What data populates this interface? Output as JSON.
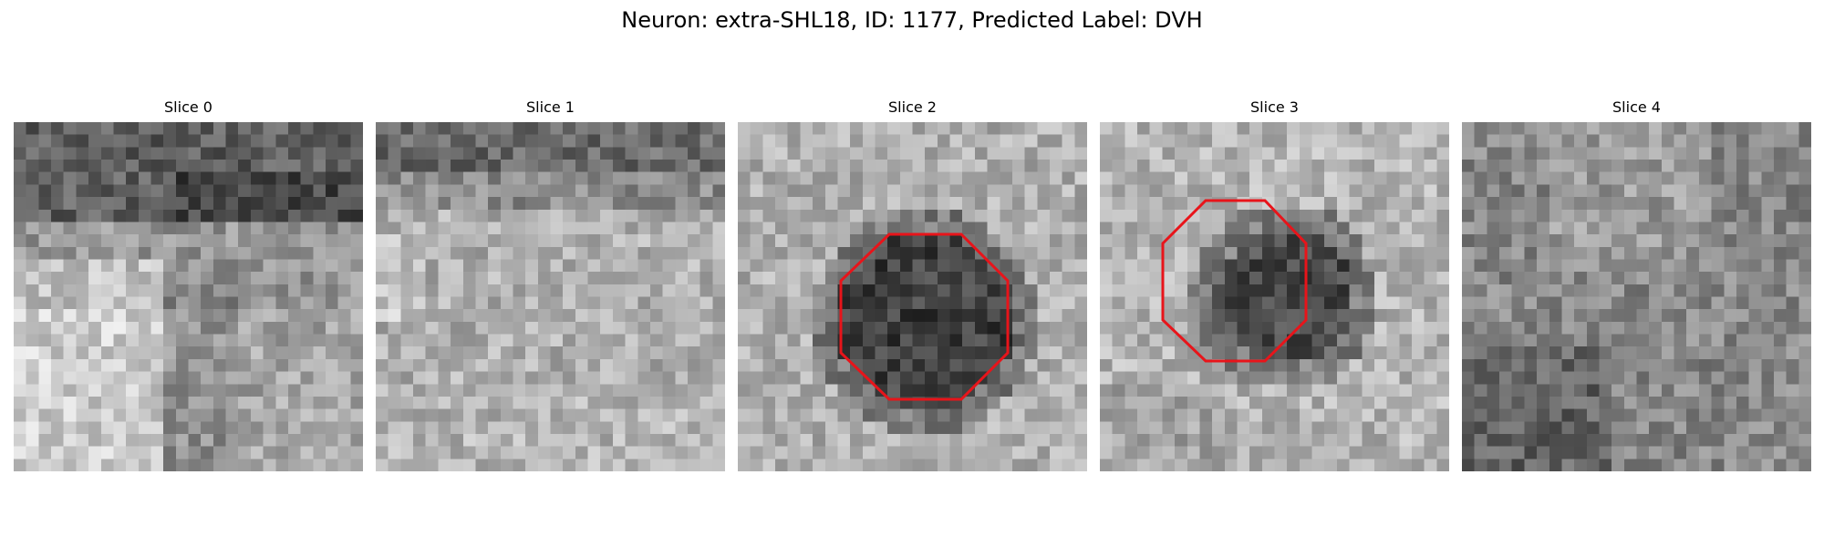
{
  "title": "Neuron: extra-SHL18, ID: 1177, Predicted Label: DVH",
  "panels": [
    {
      "label": "Slice 0",
      "roi": false
    },
    {
      "label": "Slice 1",
      "roi": false
    },
    {
      "label": "Slice 2",
      "roi": true
    },
    {
      "label": "Slice 3",
      "roi": true
    },
    {
      "label": "Slice 4",
      "roi": false
    }
  ],
  "colors": {
    "roi_outline": "#e8141a",
    "background": "#ffffff"
  }
}
